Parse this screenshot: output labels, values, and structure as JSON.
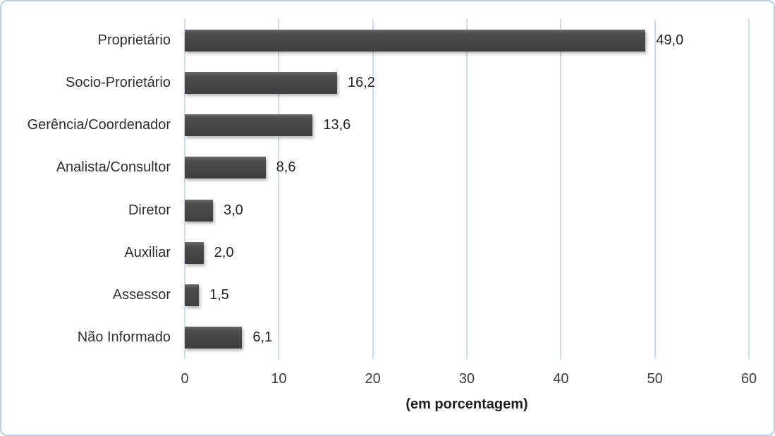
{
  "chart_data": {
    "type": "bar",
    "orientation": "horizontal",
    "categories": [
      "Proprietário",
      "Socio-Prorietário",
      "Gerência/Coordenador",
      "Analista/Consultor",
      "Diretor",
      "Auxiliar",
      "Assessor",
      "Não Informado"
    ],
    "values": [
      49.0,
      16.2,
      13.6,
      8.6,
      3.0,
      2.0,
      1.5,
      6.1
    ],
    "value_labels": [
      "49,0",
      "16,2",
      "13,6",
      "8,6",
      "3,0",
      "2,0",
      "1,5",
      "6,1"
    ],
    "title": "",
    "xlabel": "(em porcentagem)",
    "ylabel": "",
    "xlim": [
      0,
      60
    ],
    "xticks": [
      0,
      10,
      20,
      30,
      40,
      50,
      60
    ],
    "grid": "vertical-only",
    "legend": "none",
    "colors": {
      "bar": "#454545",
      "gridline": "#cdddf1",
      "frame_border": "#b7d0e8",
      "text": "#2f2f2f",
      "background": "#ffffff"
    }
  }
}
